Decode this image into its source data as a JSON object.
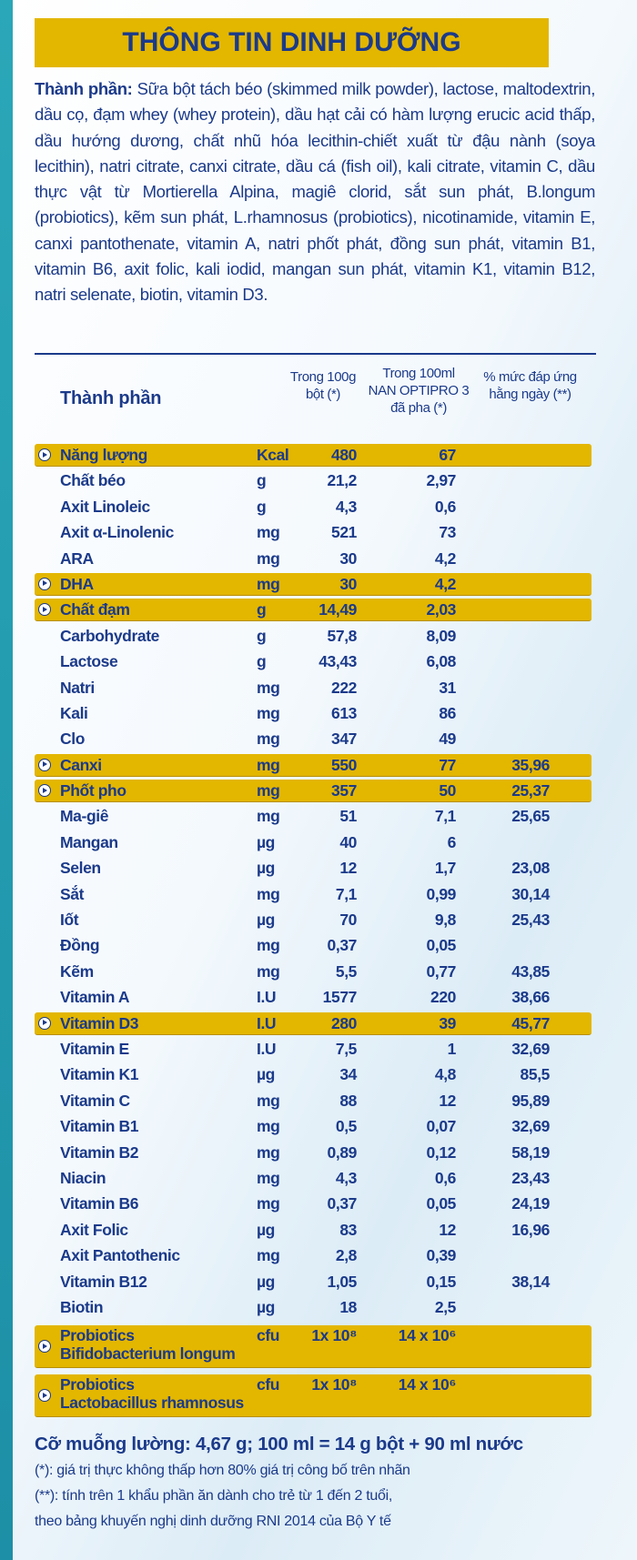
{
  "header": {
    "title": "THÔNG TIN DINH DƯỠNG"
  },
  "ingredients": {
    "label": "Thành phần:",
    "text": "Sữa bột tách béo (skimmed milk powder), lactose, maltodextrin, dầu cọ, đạm whey (whey protein), dầu hạt cải có hàm lượng erucic acid thấp, dầu hướng dương, chất nhũ hóa lecithin-chiết xuất từ đậu nành (soya lecithin), natri citrate, canxi citrate, dầu cá (fish oil), kali citrate, vitamin C, dầu thực vật từ Mortierella Alpina, magiê clorid, sắt sun phát, B.longum (probiotics), kẽm sun phát,  L.rhamnosus (probiotics), nicotinamide, vitamin E, canxi pantothenate, vitamin A, natri phốt phát, đồng sun phát, vitamin B1, vitamin B6, axit folic, kali iodid, mangan sun phát, vitamin K1, vitamin B12, natri selenate, biotin, vitamin D3."
  },
  "table": {
    "columns": [
      "Thành phần",
      "Trong 100g\nbột (*)",
      "Trong 100ml\nNAN OPTIPRO 3\nđã pha (*)",
      "% mức đáp ứng\nhằng ngày (**)"
    ],
    "rows": [
      {
        "cells": [
          "Năng lượng",
          "Kcal",
          "480",
          "67",
          null
        ],
        "highlight": true
      },
      {
        "cells": [
          "Chất béo",
          "g",
          "21,2",
          "2,97",
          null
        ],
        "highlight": false
      },
      {
        "cells": [
          "Axit Linoleic",
          "g",
          "4,3",
          "0,6",
          null
        ],
        "highlight": false
      },
      {
        "cells": [
          "Axit α-Linolenic",
          "mg",
          "521",
          "73",
          null
        ],
        "highlight": false
      },
      {
        "cells": [
          "ARA",
          "mg",
          "30",
          "4,2",
          null
        ],
        "highlight": false
      },
      {
        "cells": [
          "DHA",
          "mg",
          "30",
          "4,2",
          null
        ],
        "highlight": true
      },
      {
        "cells": [
          "Chất đạm",
          "g",
          "14,49",
          "2,03",
          null
        ],
        "highlight": true
      },
      {
        "cells": [
          "Carbohydrate",
          "g",
          "57,8",
          "8,09",
          null
        ],
        "highlight": false
      },
      {
        "cells": [
          "Lactose",
          "g",
          "43,43",
          "6,08",
          null
        ],
        "highlight": false
      },
      {
        "cells": [
          "Natri",
          "mg",
          "222",
          "31",
          null
        ],
        "highlight": false
      },
      {
        "cells": [
          "Kali",
          "mg",
          "613",
          "86",
          null
        ],
        "highlight": false
      },
      {
        "cells": [
          "Clo",
          "mg",
          "347",
          "49",
          null
        ],
        "highlight": false
      },
      {
        "cells": [
          "Canxi",
          "mg",
          "550",
          "77",
          "35,96"
        ],
        "highlight": true
      },
      {
        "cells": [
          "Phốt pho",
          "mg",
          "357",
          "50",
          "25,37"
        ],
        "highlight": true
      },
      {
        "cells": [
          "Ma-giê",
          "mg",
          "51",
          "7,1",
          "25,65"
        ],
        "highlight": false
      },
      {
        "cells": [
          "Mangan",
          "µg",
          "40",
          "6",
          null
        ],
        "highlight": false
      },
      {
        "cells": [
          "Selen",
          "µg",
          "12",
          "1,7",
          "23,08"
        ],
        "highlight": false
      },
      {
        "cells": [
          "Sắt",
          "mg",
          "7,1",
          "0,99",
          "30,14"
        ],
        "highlight": false
      },
      {
        "cells": [
          "Iốt",
          "µg",
          "70",
          "9,8",
          "25,43"
        ],
        "highlight": false
      },
      {
        "cells": [
          "Đồng",
          "mg",
          "0,37",
          "0,05",
          null
        ],
        "highlight": false
      },
      {
        "cells": [
          "Kẽm",
          "mg",
          "5,5",
          "0,77",
          "43,85"
        ],
        "highlight": false
      },
      {
        "cells": [
          "Vitamin A",
          "I.U",
          "1577",
          "220",
          "38,66"
        ],
        "highlight": false
      },
      {
        "cells": [
          "Vitamin D3",
          "I.U",
          "280",
          "39",
          "45,77"
        ],
        "highlight": true
      },
      {
        "cells": [
          "Vitamin E",
          "I.U",
          "7,5",
          "1",
          "32,69"
        ],
        "highlight": false
      },
      {
        "cells": [
          "Vitamin K1",
          "µg",
          "34",
          "4,8",
          "85,5"
        ],
        "highlight": false
      },
      {
        "cells": [
          "Vitamin C",
          "mg",
          "88",
          "12",
          "95,89"
        ],
        "highlight": false
      },
      {
        "cells": [
          "Vitamin B1",
          "mg",
          "0,5",
          "0,07",
          "32,69"
        ],
        "highlight": false
      },
      {
        "cells": [
          "Vitamin B2",
          "mg",
          "0,89",
          "0,12",
          "58,19"
        ],
        "highlight": false
      },
      {
        "cells": [
          "Niacin",
          "mg",
          "4,3",
          "0,6",
          "23,43"
        ],
        "highlight": false
      },
      {
        "cells": [
          "Vitamin B6",
          "mg",
          "0,37",
          "0,05",
          "24,19"
        ],
        "highlight": false
      },
      {
        "cells": [
          "Axit Folic",
          "µg",
          "83",
          "12",
          "16,96"
        ],
        "highlight": false
      },
      {
        "cells": [
          "Axit Pantothenic",
          "mg",
          "2,8",
          "0,39",
          null
        ],
        "highlight": false
      },
      {
        "cells": [
          "Vitamin B12",
          "µg",
          "1,05",
          "0,15",
          "38,14"
        ],
        "highlight": false
      },
      {
        "cells": [
          "Biotin",
          "µg",
          "18",
          "2,5",
          null
        ],
        "highlight": false
      },
      {
        "cells": [
          "Probiotics\nBifidobacterium longum",
          "cfu",
          "1x 10⁸",
          "14 x 10⁶",
          null
        ],
        "highlight": true
      },
      {
        "cells": [
          "Probiotics\nLactobacillus rhamnosus",
          "cfu",
          "1x 10⁸",
          "14 x 10⁶",
          null
        ],
        "highlight": true
      }
    ]
  },
  "footer": {
    "serving": "Cỡ muỗng lường: 4,67 g; 100 ml = 14 g bột + 90 ml nước",
    "notes": [
      "(*): giá trị thực không thấp hơn 80% giá trị công bố trên nhãn",
      "(**): tính trên 1 khẩu phần ăn dành cho trẻ từ 1 đến 2 tuổi,",
      "theo bảng khuyến nghị dinh dưỡng RNI 2014 của Bộ Y tế"
    ]
  }
}
